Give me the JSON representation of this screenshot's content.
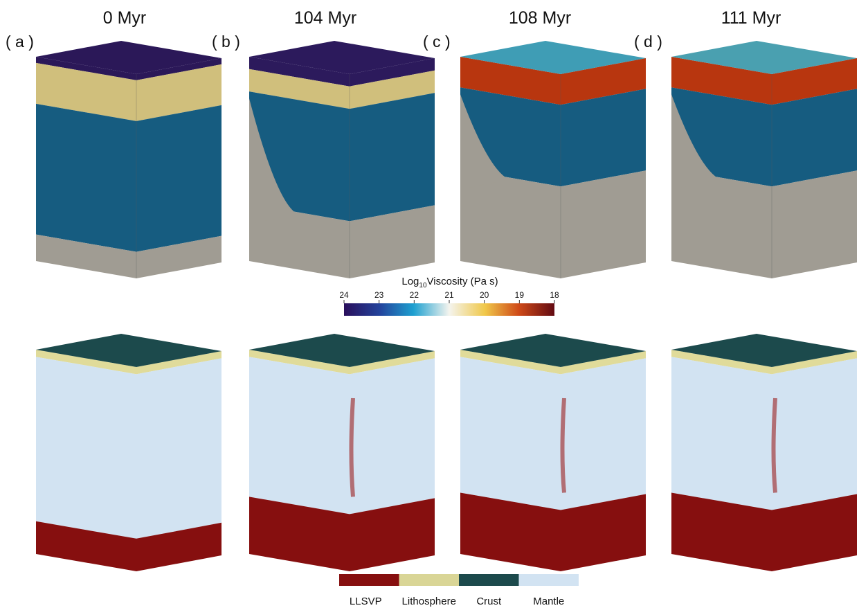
{
  "panels": [
    {
      "label": "( a )",
      "time": "0 Myr"
    },
    {
      "label": "( b )",
      "time": "104 Myr"
    },
    {
      "label": "( c )",
      "time": "108 Myr"
    },
    {
      "label": "( d )",
      "time": "111 Myr"
    }
  ],
  "colorbar": {
    "title_base": "Log",
    "title_sub": "10",
    "title_rest": "Viscosity (Pa s)",
    "ticks": [
      "24",
      "23",
      "22",
      "21",
      "20",
      "19",
      "18"
    ]
  },
  "legend": [
    {
      "label": "LLSVP",
      "color": "#860f0f"
    },
    {
      "label": "Lithosphere",
      "color": "#d9d596"
    },
    {
      "label": "Crust",
      "color": "#1c4a4c"
    },
    {
      "label": "Mantle",
      "color": "#d2e3f2"
    }
  ]
}
